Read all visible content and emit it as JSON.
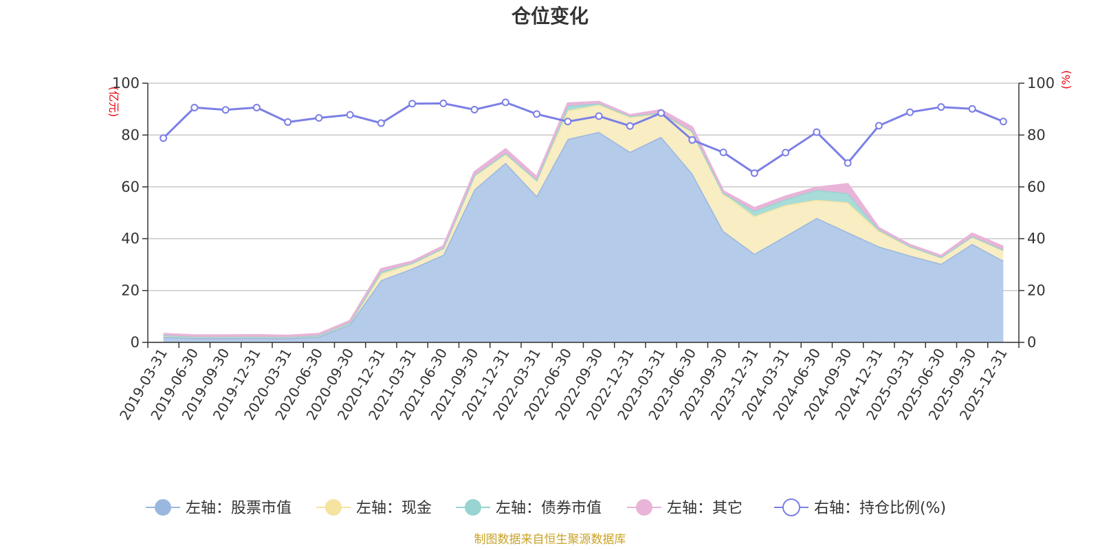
{
  "chart_data": {
    "type": "area",
    "title": "仓位变化",
    "y_left_unit": "(亿元)",
    "y_right_unit": "(%)",
    "y_left_lim": [
      0,
      100
    ],
    "y_right_lim": [
      0,
      100
    ],
    "y_left_ticks": [
      "0",
      "20",
      "40",
      "60",
      "80",
      "100"
    ],
    "y_right_ticks": [
      "0",
      "20",
      "40",
      "60",
      "80",
      "100"
    ],
    "grid": true,
    "legend_position": "bottom",
    "categories": [
      "2019-03-31",
      "2019-06-30",
      "2019-09-30",
      "2019-12-31",
      "2020-03-31",
      "2020-06-30",
      "2020-09-30",
      "2020-12-31",
      "2021-03-31",
      "2021-06-30",
      "2021-09-30",
      "2021-12-31",
      "2022-03-31",
      "2022-06-30",
      "2022-09-30",
      "2022-12-31",
      "2023-03-31",
      "2023-06-30",
      "2023-09-30",
      "2023-12-31",
      "2024-03-31",
      "2024-06-30",
      "2024-09-30",
      "2024-12-31",
      "2025-03-31",
      "2025-06-30",
      "2025-09-30",
      "2025-12-31"
    ],
    "series": [
      {
        "name": "左轴：股票市值",
        "axis": "left",
        "kind": "stacked-area",
        "color": "#9ab7e0",
        "fill": "#b5cbea",
        "values": [
          2.2,
          1.6,
          1.6,
          1.7,
          1.5,
          2.2,
          7.0,
          24.0,
          28.5,
          33.8,
          59.0,
          69.3,
          56.5,
          78.5,
          81.2,
          73.5,
          79.3,
          65.2,
          43.0,
          34.2,
          41.0,
          48.0,
          42.5,
          37.0,
          33.5,
          30.3,
          38.0,
          31.5
        ]
      },
      {
        "name": "左轴：现金",
        "axis": "left",
        "kind": "stacked-area",
        "color": "#f5e3a0",
        "fill": "#f8edc3",
        "values": [
          0.5,
          0.4,
          0.4,
          0.4,
          0.4,
          0.4,
          0.6,
          2.5,
          2.0,
          2.5,
          5.3,
          3.5,
          6.0,
          11.0,
          10.5,
          13.5,
          9.0,
          16.0,
          14.5,
          14.5,
          12.0,
          7.0,
          11.5,
          6.0,
          3.5,
          2.5,
          2.8,
          4.0
        ]
      },
      {
        "name": "左轴：债券市值",
        "axis": "left",
        "kind": "stacked-area",
        "color": "#98d4d1",
        "fill": "#a8dcd8",
        "values": [
          0.1,
          0.1,
          0.1,
          0.1,
          0.1,
          0.1,
          0.1,
          0.8,
          0.1,
          0.1,
          0.2,
          0.2,
          0.2,
          1.7,
          0.5,
          0.3,
          0.3,
          0.3,
          0.1,
          2.0,
          2.2,
          3.8,
          3.5,
          0.5,
          0.1,
          0.1,
          0.1,
          0.2
        ]
      },
      {
        "name": "左轴：其它",
        "axis": "left",
        "kind": "stacked-area",
        "color": "#e8b4d8",
        "fill": "#e8b4d8",
        "values": [
          0.5,
          0.6,
          0.6,
          0.6,
          0.6,
          0.6,
          0.6,
          1.0,
          0.6,
          0.7,
          1.2,
          1.5,
          1.1,
          1.0,
          0.6,
          0.4,
          1.0,
          1.5,
          0.7,
          1.1,
          1.1,
          0.9,
          3.6,
          0.6,
          0.5,
          0.5,
          1.1,
          1.2
        ]
      },
      {
        "name": "右轴：持仓比例(%)",
        "axis": "right",
        "kind": "line",
        "color": "#7b7fe6",
        "values": [
          78.8,
          90.6,
          89.7,
          90.6,
          85.0,
          86.6,
          87.8,
          84.6,
          92.1,
          92.2,
          89.8,
          92.6,
          88.1,
          85.2,
          87.3,
          83.5,
          88.5,
          78.1,
          73.3,
          65.3,
          73.2,
          81.1,
          69.2,
          83.6,
          88.8,
          90.8,
          90.1,
          85.2
        ]
      }
    ],
    "source": "制图数据来自恒生聚源数据库"
  }
}
